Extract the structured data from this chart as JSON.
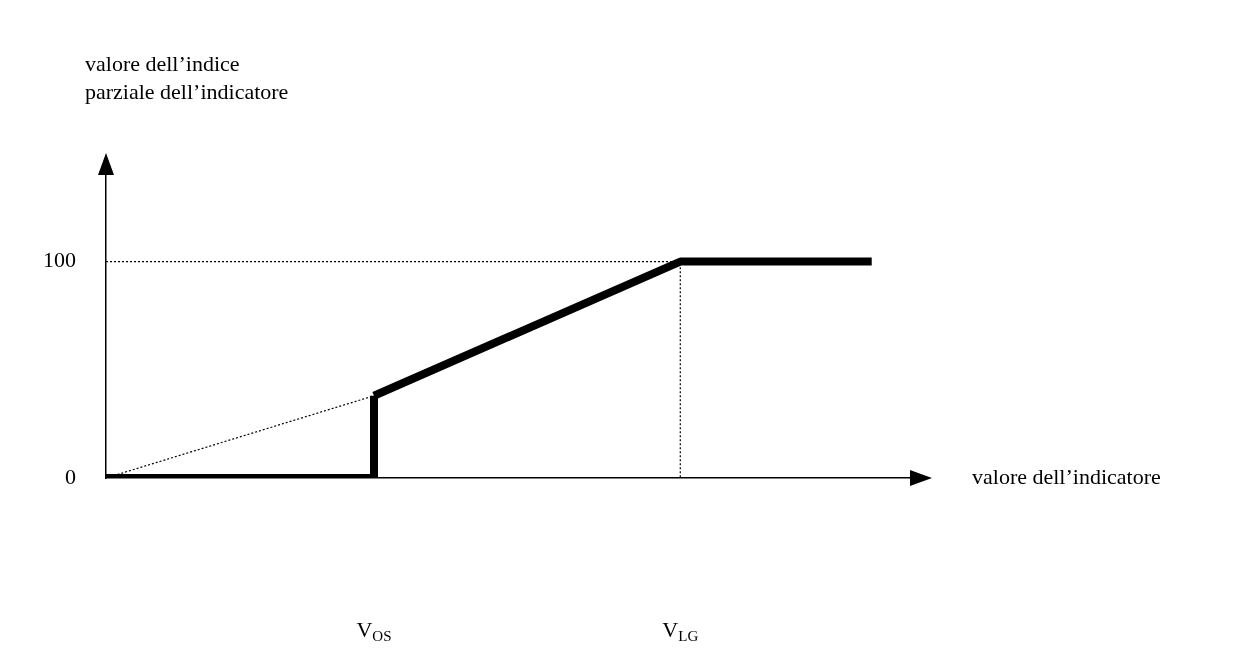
{
  "chart_data": {
    "type": "line",
    "ylabel": "valore dell’indice parziale dell’indicatore",
    "xlabel": "valore dell’indicatore",
    "categories": [
      null,
      null,
      null,
      null,
      null,
      null,
      null,
      "V$_{OS}$",
      null,
      null,
      null,
      null,
      null,
      null,
      null,
      "V$_{LG}$",
      null,
      null,
      null,
      null,
      null,
      null
    ],
    "ylim": [
      0,
      140
    ],
    "yticks": [
      0,
      100
    ],
    "grid": false,
    "legend": false,
    "marker": "none",
    "series": [
      {
        "values": [
          0,
          null,
          null,
          null,
          null,
          null,
          null,
          38,
          null,
          null,
          null,
          null,
          null,
          null,
          null,
          null,
          null,
          null,
          null,
          null,
          null,
          null
        ],
        "color": "#000000",
        "line_style": "dotted"
      },
      {
        "type": "step",
        "values": [
          100,
          null,
          null,
          null,
          null,
          null,
          null,
          null,
          null,
          null,
          null,
          null,
          null,
          null,
          null,
          0,
          null,
          null,
          null,
          null,
          null,
          null
        ],
        "color": "#000000",
        "line_style": "dotted"
      },
      {
        "type": "step",
        "values": [
          0,
          null,
          null,
          null,
          null,
          null,
          null,
          38,
          null,
          null,
          null,
          null,
          null,
          null,
          null,
          null,
          null,
          null,
          null,
          null,
          null,
          null
        ],
        "color": "#000000",
        "line_style": "solid"
      },
      {
        "values": [
          null,
          null,
          null,
          null,
          null,
          null,
          null,
          38,
          null,
          null,
          null,
          null,
          null,
          null,
          null,
          100,
          null,
          null,
          null,
          null,
          100,
          null
        ],
        "color": "#000000",
        "line_style": "solid"
      }
    ]
  }
}
